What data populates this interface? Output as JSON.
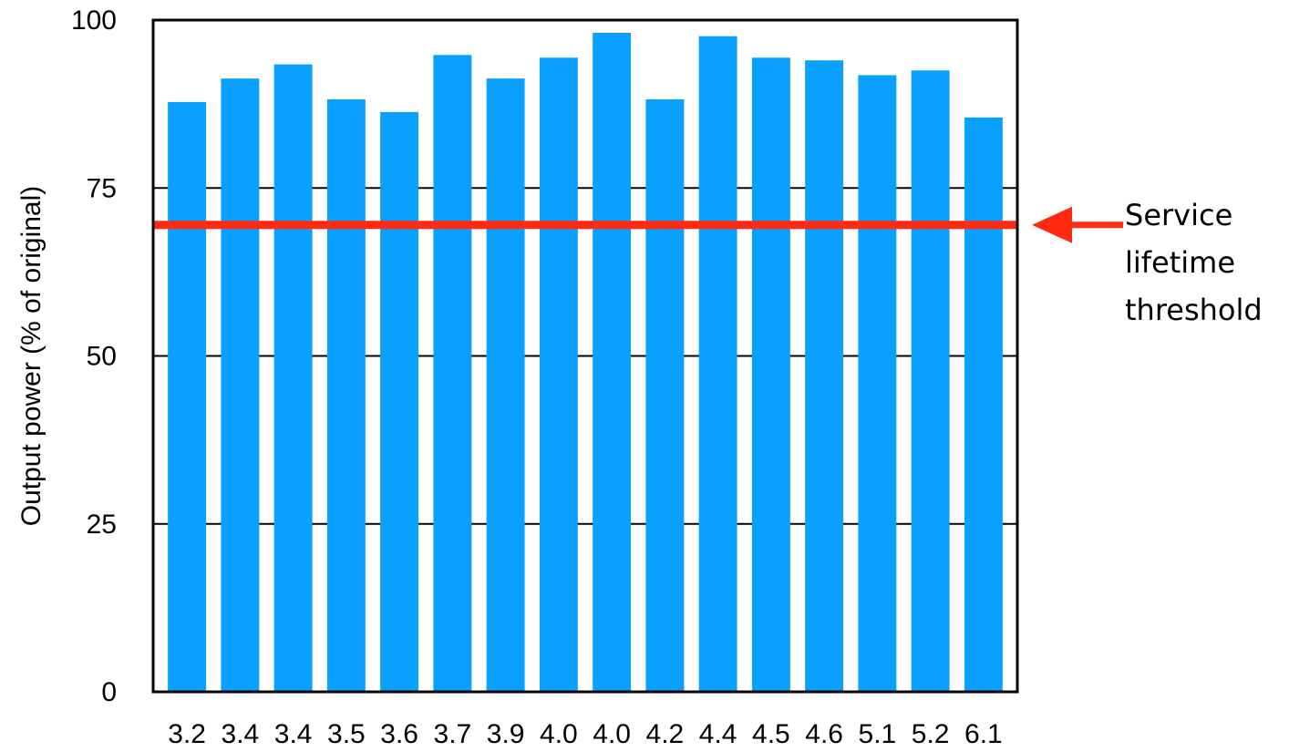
{
  "chart_data": {
    "type": "bar",
    "title": "",
    "xlabel": "",
    "ylabel": "Output power (% of original)",
    "categories": [
      "3.2",
      "3.4",
      "3.4",
      "3.5",
      "3.6",
      "3.7",
      "3.9",
      "4.0",
      "4.0",
      "4.2",
      "4.4",
      "4.5",
      "4.6",
      "5.1",
      "5.2",
      "6.1"
    ],
    "values": [
      87.8,
      91.3,
      93.4,
      88.2,
      86.3,
      94.8,
      91.3,
      94.4,
      98.1,
      88.2,
      97.6,
      94.4,
      94.0,
      91.8,
      92.5,
      85.5
    ],
    "ylim": [
      0,
      100
    ],
    "yticks": [
      "0",
      "25",
      "50",
      "75",
      "100"
    ],
    "grid": "horizontal at y ticks",
    "threshold": {
      "value": 69.5,
      "label_lines": [
        "Service",
        "lifetime",
        "threshold"
      ]
    }
  },
  "colors": {
    "bar": "#0aa0ff",
    "threshold": "#ff2a10",
    "axis": "#000000"
  }
}
